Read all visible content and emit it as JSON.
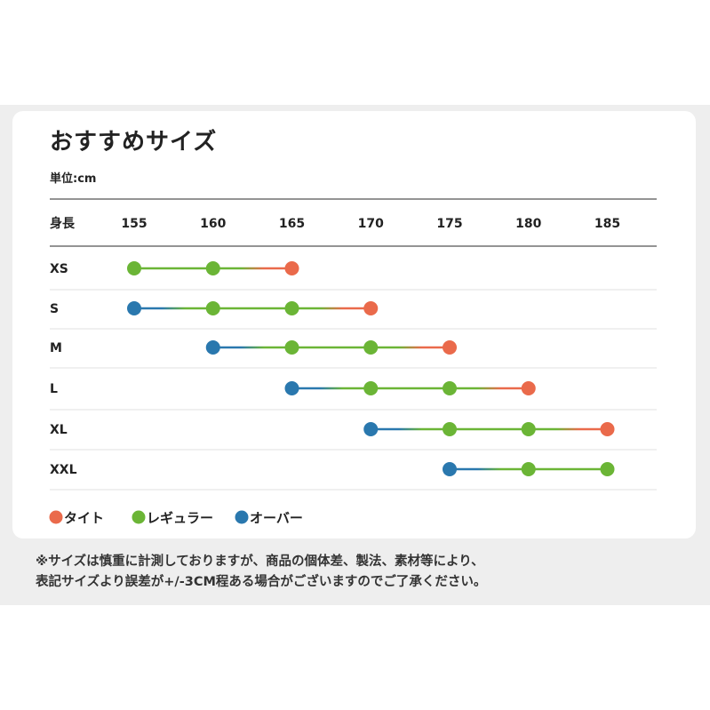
{
  "title": "おすすめサイズ",
  "unit_label": "単位:cm",
  "colors": {
    "tight": "#ea6a4b",
    "regular": "#6bb536",
    "over": "#2a78ae",
    "rule_dark": "#555555",
    "rule_light": "#e2e2e2"
  },
  "chart_data": {
    "type": "dot-range",
    "row_header": "身長",
    "heights": [
      155,
      160,
      165,
      170,
      175,
      180,
      185
    ],
    "legend": [
      {
        "key": "tight",
        "label": "タイト"
      },
      {
        "key": "regular",
        "label": "レギュラー"
      },
      {
        "key": "over",
        "label": "オーバー"
      }
    ],
    "rows": [
      {
        "size": "XS",
        "points": [
          {
            "height": 155,
            "fit": "regular"
          },
          {
            "height": 160,
            "fit": "regular"
          },
          {
            "height": 165,
            "fit": "tight"
          }
        ]
      },
      {
        "size": "S",
        "points": [
          {
            "height": 155,
            "fit": "over"
          },
          {
            "height": 160,
            "fit": "regular"
          },
          {
            "height": 165,
            "fit": "regular"
          },
          {
            "height": 170,
            "fit": "tight"
          }
        ]
      },
      {
        "size": "M",
        "points": [
          {
            "height": 160,
            "fit": "over"
          },
          {
            "height": 165,
            "fit": "regular"
          },
          {
            "height": 170,
            "fit": "regular"
          },
          {
            "height": 175,
            "fit": "tight"
          }
        ]
      },
      {
        "size": "L",
        "points": [
          {
            "height": 165,
            "fit": "over"
          },
          {
            "height": 170,
            "fit": "regular"
          },
          {
            "height": 175,
            "fit": "regular"
          },
          {
            "height": 180,
            "fit": "tight"
          }
        ]
      },
      {
        "size": "XL",
        "points": [
          {
            "height": 170,
            "fit": "over"
          },
          {
            "height": 175,
            "fit": "regular"
          },
          {
            "height": 180,
            "fit": "regular"
          },
          {
            "height": 185,
            "fit": "tight"
          }
        ]
      },
      {
        "size": "XXL",
        "points": [
          {
            "height": 175,
            "fit": "over"
          },
          {
            "height": 180,
            "fit": "regular"
          },
          {
            "height": 185,
            "fit": "regular"
          }
        ]
      }
    ]
  },
  "notes": [
    "※サイズは慎重に計測しておりますが、商品の個体差、製法、素材等により、",
    "表記サイズより誤差が+/-3CM程ある場合がございますのでご了承ください。"
  ]
}
